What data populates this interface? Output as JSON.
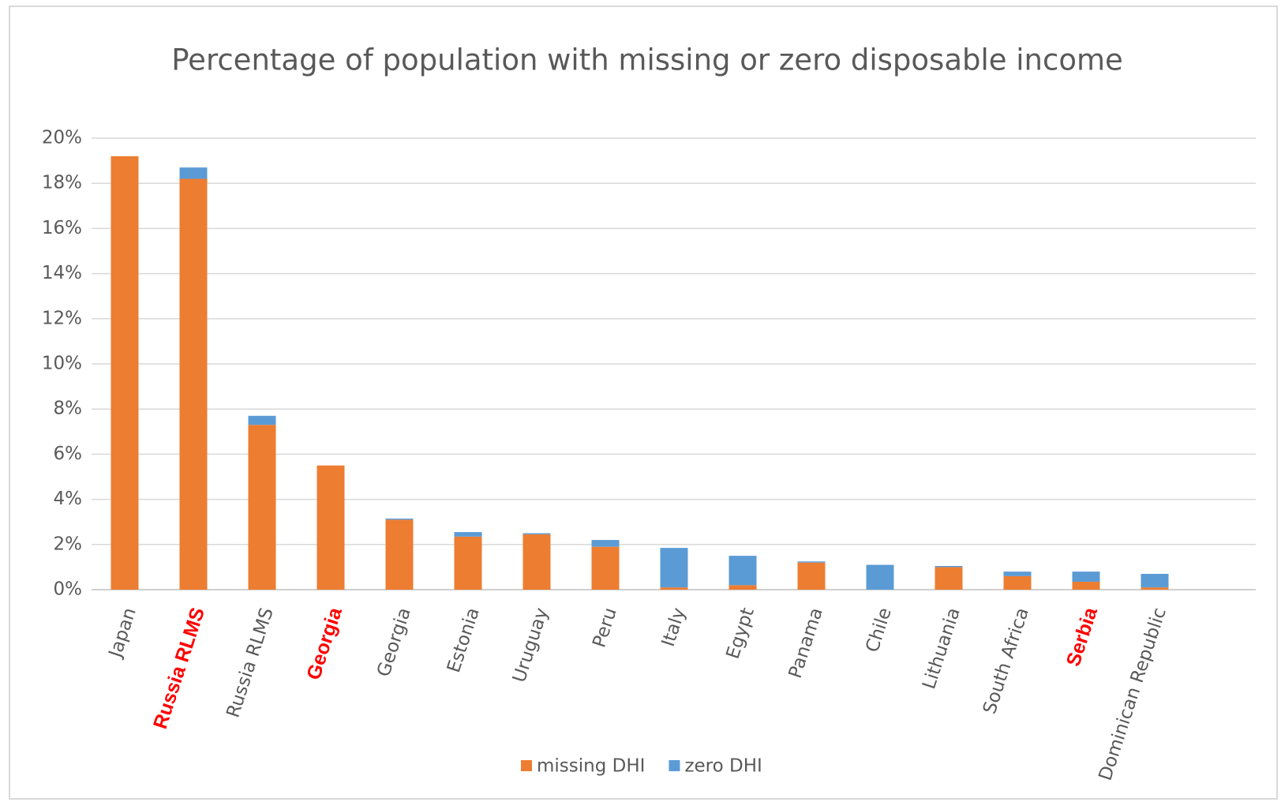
{
  "chart_data": {
    "type": "stacked_bar",
    "title": "Percentage of population with missing or zero disposable income",
    "categories": [
      "Japan",
      "Russia RLMS",
      "Russia RLMS",
      "Georgia",
      "Georgia",
      "Estonia",
      "Uruguay",
      "Peru",
      "Italy",
      "Egypt",
      "Panama",
      "Chile",
      "Lithuania",
      "South Africa",
      "Serbia",
      "Dominican Republic"
    ],
    "highlighted_categories": [
      false,
      true,
      false,
      true,
      false,
      false,
      false,
      false,
      false,
      false,
      false,
      false,
      false,
      false,
      true,
      false
    ],
    "highlight_color": "#ff0000",
    "series": [
      {
        "name": "missing DHI",
        "color": "#ed7d31",
        "values": [
          19.2,
          18.2,
          7.3,
          5.5,
          3.1,
          2.35,
          2.45,
          1.9,
          0.1,
          0.2,
          1.2,
          0,
          1.0,
          0.6,
          0.35,
          0.1
        ]
      },
      {
        "name": "zero DHI",
        "color": "#5b9bd5",
        "values": [
          0,
          0.5,
          0.4,
          0,
          0.05,
          0.2,
          0.05,
          0.3,
          1.75,
          1.3,
          0.05,
          1.1,
          0.05,
          0.2,
          0.45,
          0.6
        ]
      }
    ],
    "ylim": [
      0,
      20
    ],
    "yticks": [
      {
        "value": 0,
        "label": "0%"
      },
      {
        "value": 2,
        "label": "2%"
      },
      {
        "value": 4,
        "label": "4%"
      },
      {
        "value": 6,
        "label": "6%"
      },
      {
        "value": 8,
        "label": "8%"
      },
      {
        "value": 10,
        "label": "10%"
      },
      {
        "value": 12,
        "label": "12%"
      },
      {
        "value": 14,
        "label": "14%"
      },
      {
        "value": 16,
        "label": "16%"
      },
      {
        "value": 18,
        "label": "18%"
      },
      {
        "value": 20,
        "label": "20%"
      }
    ],
    "grid": true,
    "legend": "bottom"
  }
}
